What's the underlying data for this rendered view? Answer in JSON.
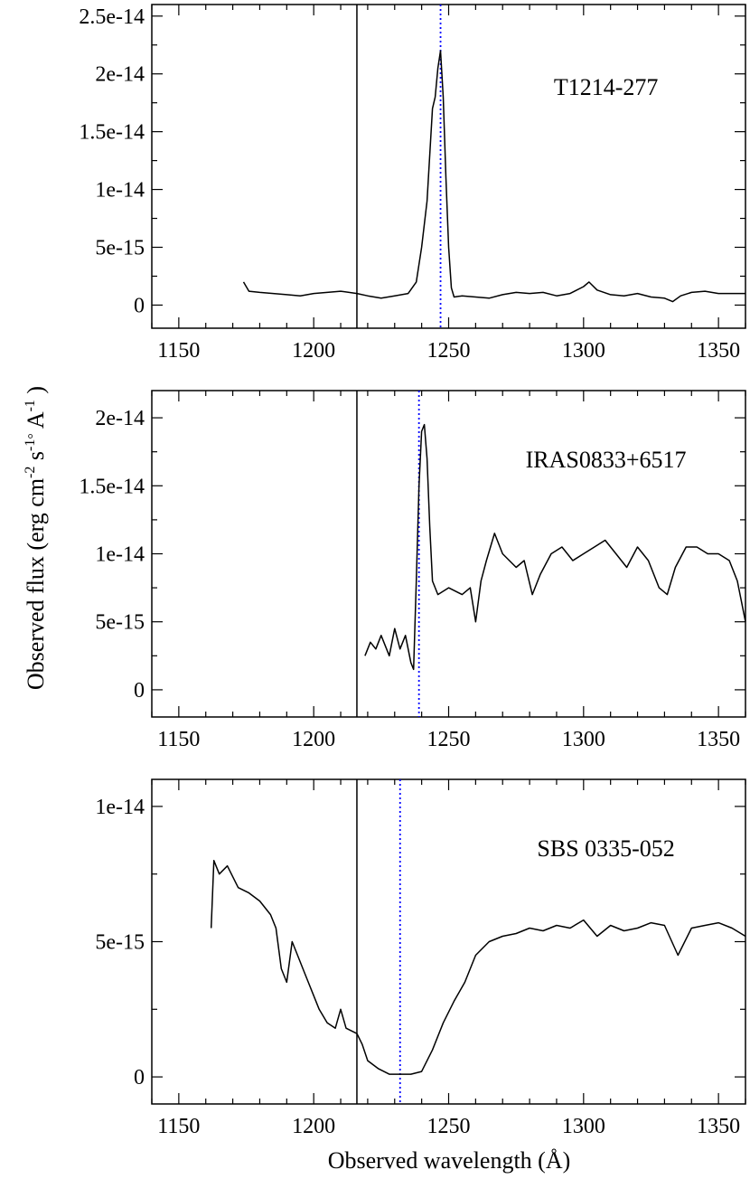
{
  "figure": {
    "ylabel_main": "Observed flux (erg cm",
    "ylabel_sup1": "-2",
    "ylabel_s": " s",
    "ylabel_sup2": "-1",
    "ylabel_ring": "°",
    "ylabel_A": " A",
    "ylabel_sup3": "-1",
    "ylabel_close": " )",
    "xlabel": "Observed wavelength (Å)"
  },
  "chart_data": [
    {
      "type": "line",
      "label": "T1214-277",
      "xlim": [
        1140,
        1360
      ],
      "ylim": [
        -2e-15,
        2.6e-14
      ],
      "xticks": [
        1150,
        1200,
        1250,
        1300,
        1350
      ],
      "xtick_labels": [
        "1150",
        "1200",
        "1250",
        "1300",
        "1350"
      ],
      "yticks": [
        0,
        5e-15,
        1e-14,
        1.5e-14,
        2e-14,
        2.5e-14
      ],
      "ytick_labels": [
        "0",
        "5e-15",
        "1e-14",
        "1.5e-14",
        "2e-14",
        "2.5e-14"
      ],
      "vline_solid": 1216,
      "vline_dotted": 1247,
      "series": [
        {
          "x": [
            1174,
            1176,
            1180,
            1185,
            1190,
            1195,
            1200,
            1205,
            1210,
            1216,
            1220,
            1225,
            1230,
            1235,
            1238,
            1240,
            1242,
            1243,
            1244,
            1245,
            1246,
            1247,
            1248,
            1249,
            1250,
            1251,
            1252,
            1255,
            1260,
            1265,
            1270,
            1275,
            1280,
            1285,
            1290,
            1295,
            1300,
            1302,
            1305,
            1310,
            1315,
            1320,
            1325,
            1330,
            1333,
            1336,
            1340,
            1345,
            1350,
            1355,
            1360
          ],
          "y": [
            2e-15,
            1.2e-15,
            1.1e-15,
            1e-15,
            9e-16,
            8e-16,
            1e-15,
            1.1e-15,
            1.2e-15,
            1e-15,
            8e-16,
            6e-16,
            8e-16,
            1e-15,
            2e-15,
            5e-15,
            9e-15,
            1.3e-14,
            1.7e-14,
            1.8e-14,
            2.05e-14,
            2.2e-14,
            1.8e-14,
            1.1e-14,
            5e-15,
            1.5e-15,
            7e-16,
            8e-16,
            7e-16,
            6e-16,
            9e-16,
            1.1e-15,
            1e-15,
            1.1e-15,
            8e-16,
            1e-15,
            1.6e-15,
            2e-15,
            1.3e-15,
            9e-16,
            8e-16,
            1e-15,
            7e-16,
            6e-16,
            3e-16,
            8e-16,
            1.1e-15,
            1.2e-15,
            1e-15,
            1e-15,
            1e-15
          ]
        }
      ]
    },
    {
      "type": "line",
      "label": "IRAS0833+6517",
      "xlim": [
        1140,
        1360
      ],
      "ylim": [
        -2e-15,
        2.2e-14
      ],
      "xticks": [
        1150,
        1200,
        1250,
        1300,
        1350
      ],
      "xtick_labels": [
        "1150",
        "1200",
        "1250",
        "1300",
        "1350"
      ],
      "yticks": [
        0,
        5e-15,
        1e-14,
        1.5e-14,
        2e-14
      ],
      "ytick_labels": [
        "0",
        "5e-15",
        "1e-14",
        "1.5e-14",
        "2e-14"
      ],
      "vline_solid": 1216,
      "vline_dotted": 1239,
      "series": [
        {
          "x": [
            1219,
            1221,
            1223,
            1225,
            1228,
            1230,
            1232,
            1234,
            1236,
            1237,
            1238,
            1239,
            1240,
            1241,
            1242,
            1243,
            1244,
            1246,
            1250,
            1255,
            1258,
            1260,
            1262,
            1264,
            1267,
            1270,
            1275,
            1278,
            1281,
            1284,
            1288,
            1292,
            1296,
            1300,
            1304,
            1308,
            1312,
            1316,
            1320,
            1324,
            1328,
            1331,
            1334,
            1338,
            1342,
            1346,
            1350,
            1354,
            1357,
            1359,
            1360
          ],
          "y": [
            2.5e-15,
            3.5e-15,
            3e-15,
            4e-15,
            2.5e-15,
            4.5e-15,
            3e-15,
            4e-15,
            2e-15,
            1.5e-15,
            8e-15,
            1.5e-14,
            1.9e-14,
            1.95e-14,
            1.7e-14,
            1.2e-14,
            8e-15,
            7e-15,
            7.5e-15,
            7e-15,
            7.5e-15,
            5e-15,
            8e-15,
            9.5e-15,
            1.15e-14,
            1e-14,
            9e-15,
            9.5e-15,
            7e-15,
            8.5e-15,
            1e-14,
            1.05e-14,
            9.5e-15,
            1e-14,
            1.05e-14,
            1.1e-14,
            1e-14,
            9e-15,
            1.05e-14,
            9.5e-15,
            7.5e-15,
            7e-15,
            9e-15,
            1.05e-14,
            1.05e-14,
            1e-14,
            1e-14,
            9.5e-15,
            8e-15,
            6e-15,
            5e-15
          ]
        }
      ]
    },
    {
      "type": "line",
      "label": "SBS 0335-052",
      "xlim": [
        1140,
        1360
      ],
      "ylim": [
        -1e-15,
        1.1e-14
      ],
      "xticks": [
        1150,
        1200,
        1250,
        1300,
        1350
      ],
      "xtick_labels": [
        "1150",
        "1200",
        "1250",
        "1300",
        "1350"
      ],
      "yticks": [
        0,
        5e-15,
        1e-14
      ],
      "ytick_labels": [
        "0",
        "5e-15",
        "1e-14"
      ],
      "vline_solid": 1216,
      "vline_dotted": 1232,
      "series": [
        {
          "x": [
            1162,
            1163,
            1165,
            1168,
            1172,
            1176,
            1180,
            1184,
            1186,
            1188,
            1190,
            1192,
            1194,
            1196,
            1198,
            1200,
            1202,
            1205,
            1208,
            1210,
            1212,
            1216,
            1218,
            1220,
            1224,
            1228,
            1232,
            1236,
            1240,
            1244,
            1248,
            1252,
            1256,
            1260,
            1265,
            1270,
            1275,
            1280,
            1285,
            1290,
            1295,
            1300,
            1305,
            1310,
            1315,
            1320,
            1325,
            1330,
            1335,
            1340,
            1345,
            1350,
            1355,
            1360
          ],
          "y": [
            5.5e-15,
            8e-15,
            7.5e-15,
            7.8e-15,
            7e-15,
            6.8e-15,
            6.5e-15,
            6e-15,
            5.5e-15,
            4e-15,
            3.5e-15,
            5e-15,
            4.5e-15,
            4e-15,
            3.5e-15,
            3e-15,
            2.5e-15,
            2e-15,
            1.8e-15,
            2.5e-15,
            1.8e-15,
            1.6e-15,
            1.2e-15,
            6e-16,
            3e-16,
            1e-16,
            1e-16,
            1e-16,
            2e-16,
            1e-15,
            2e-15,
            2.8e-15,
            3.5e-15,
            4.5e-15,
            5e-15,
            5.2e-15,
            5.3e-15,
            5.5e-15,
            5.4e-15,
            5.6e-15,
            5.5e-15,
            5.8e-15,
            5.2e-15,
            5.6e-15,
            5.4e-15,
            5.5e-15,
            5.7e-15,
            5.6e-15,
            4.5e-15,
            5.5e-15,
            5.6e-15,
            5.7e-15,
            5.5e-15,
            5.2e-15
          ]
        }
      ]
    }
  ]
}
